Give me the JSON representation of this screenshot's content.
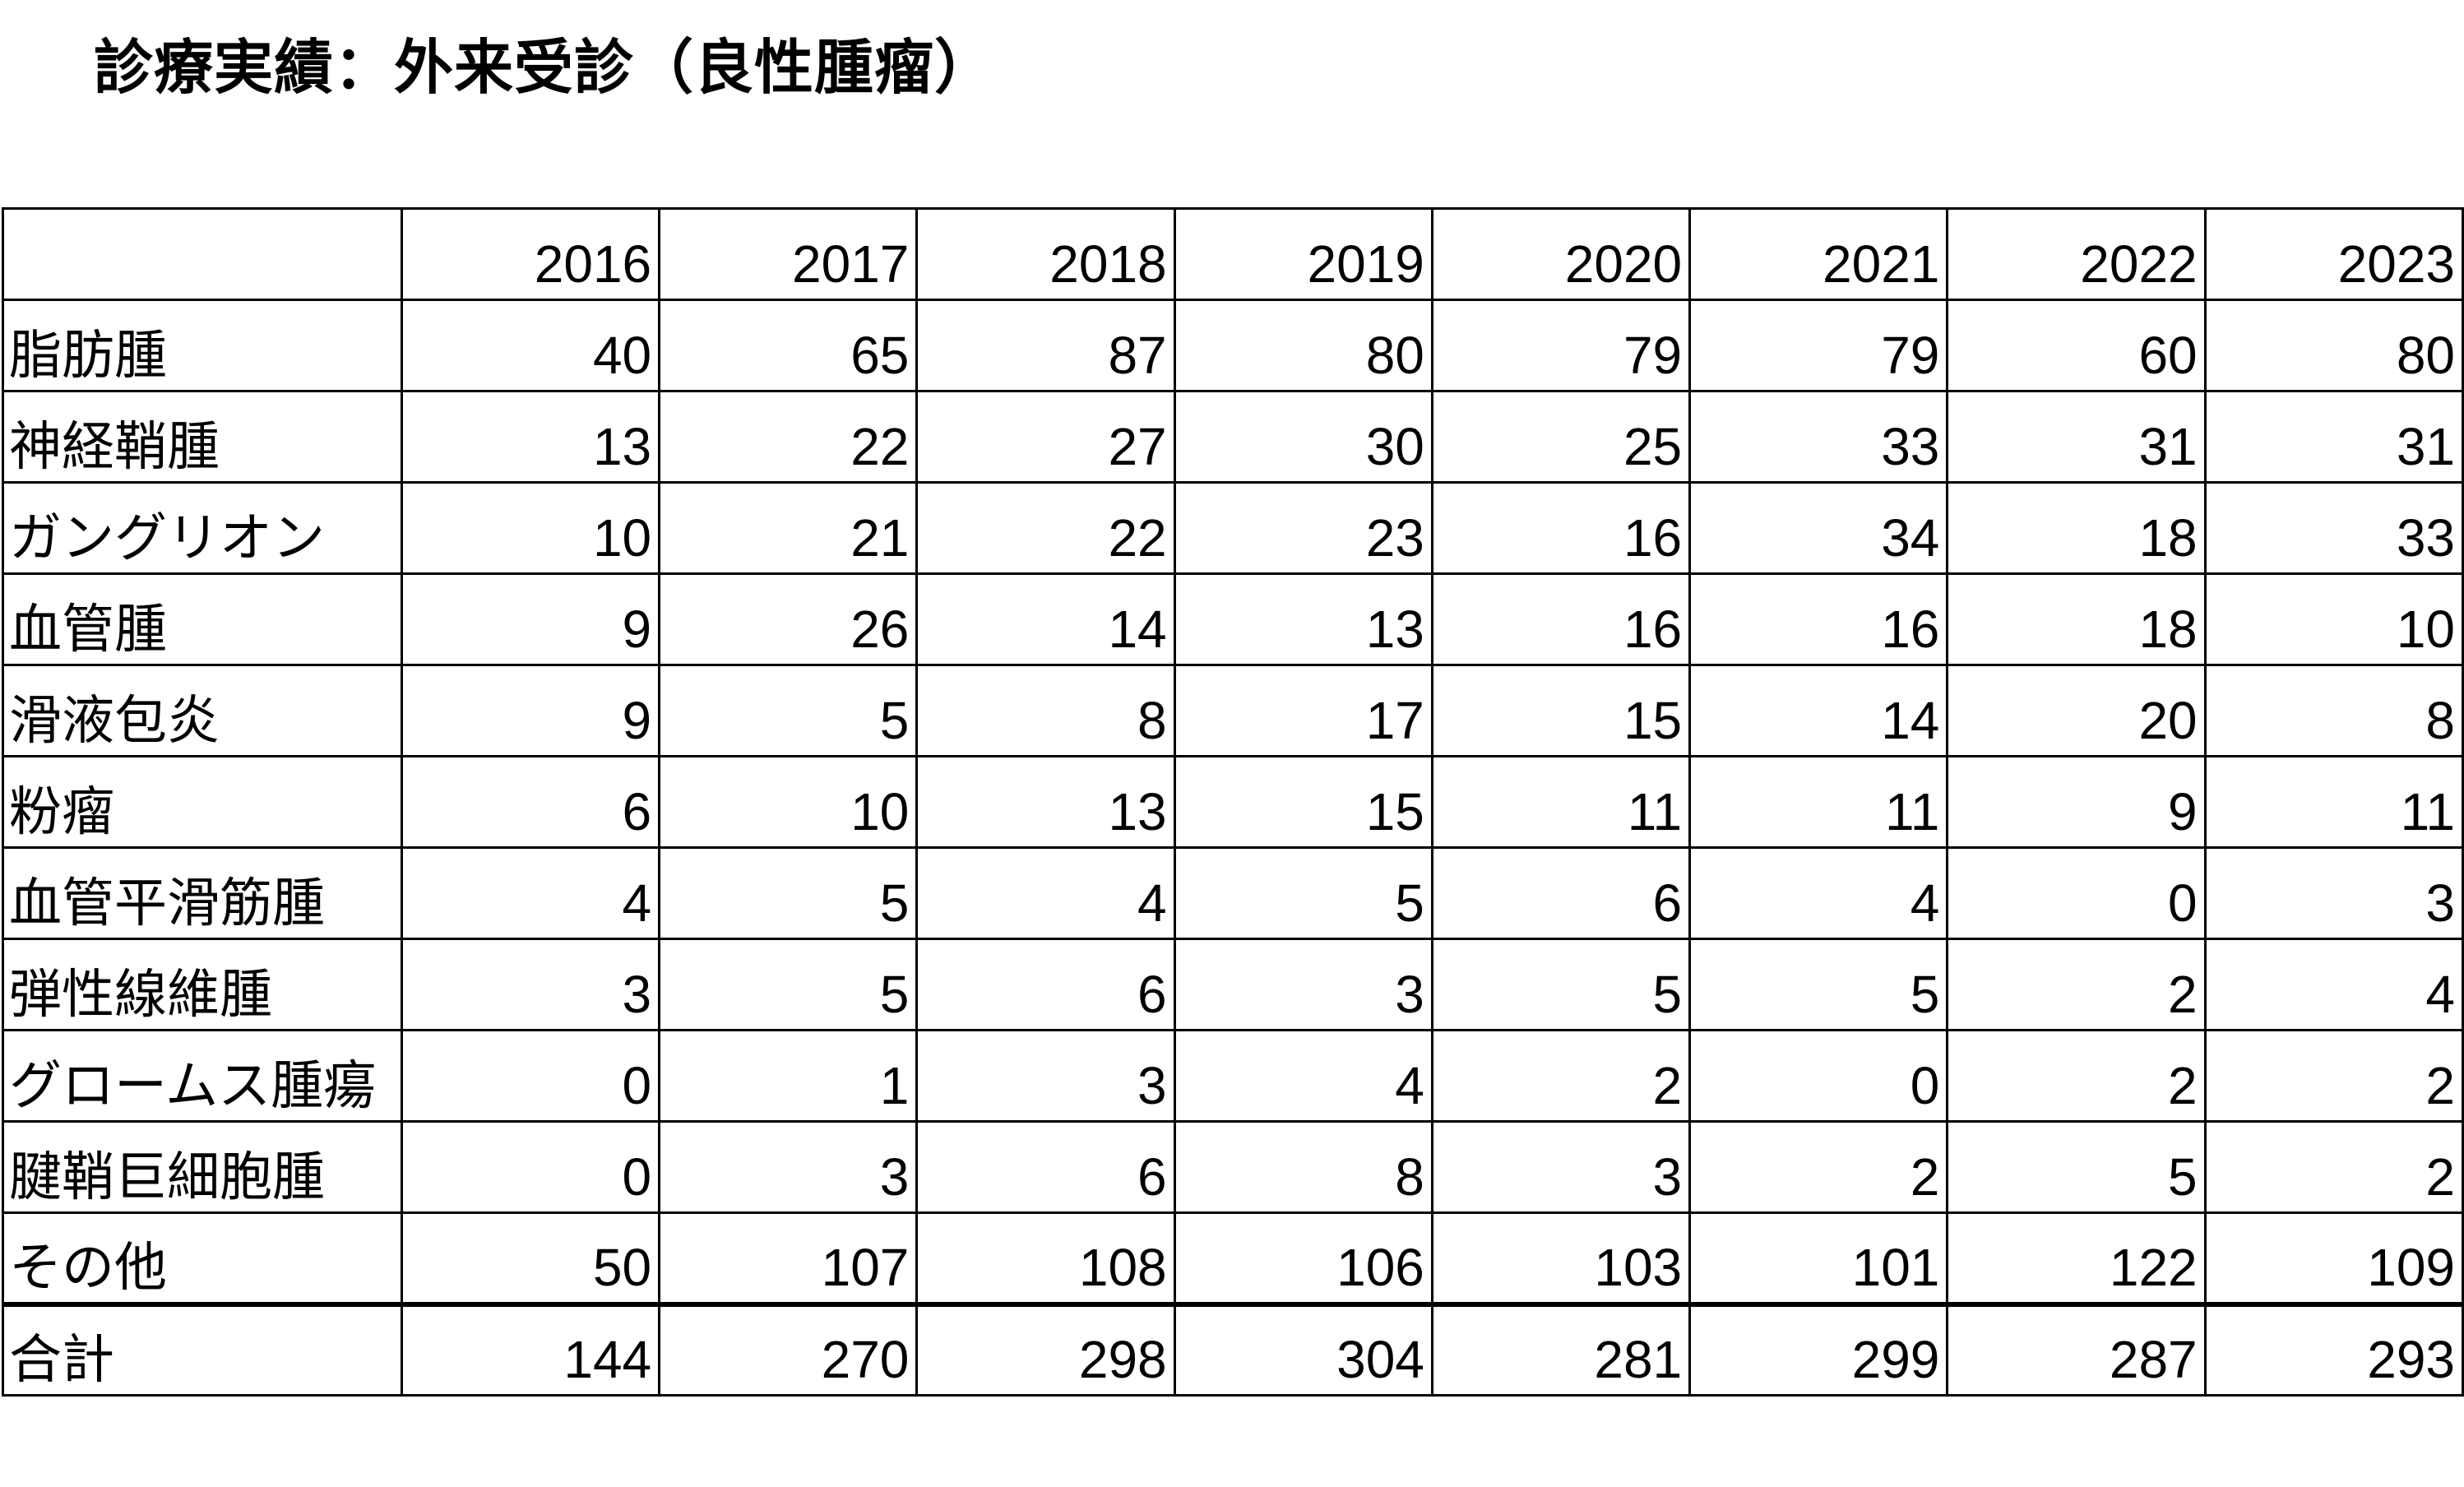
{
  "title": "診療実績：外来受診（良性腫瘤）",
  "table": {
    "header_label": "",
    "years": [
      "2016",
      "2017",
      "2018",
      "2019",
      "2020",
      "2021",
      "2022",
      "2023"
    ],
    "rows": [
      {
        "label": "脂肪腫",
        "values": [
          "40",
          "65",
          "87",
          "80",
          "79",
          "79",
          "60",
          "80"
        ]
      },
      {
        "label": "神経鞘腫",
        "values": [
          "13",
          "22",
          "27",
          "30",
          "25",
          "33",
          "31",
          "31"
        ]
      },
      {
        "label": "ガングリオン",
        "values": [
          "10",
          "21",
          "22",
          "23",
          "16",
          "34",
          "18",
          "33"
        ]
      },
      {
        "label": "血管腫",
        "values": [
          "9",
          "26",
          "14",
          "13",
          "16",
          "16",
          "18",
          "10"
        ]
      },
      {
        "label": "滑液包炎",
        "values": [
          "9",
          "5",
          "8",
          "17",
          "15",
          "14",
          "20",
          "8"
        ]
      },
      {
        "label": "粉瘤",
        "values": [
          "6",
          "10",
          "13",
          "15",
          "11",
          "11",
          "9",
          "11"
        ]
      },
      {
        "label": "血管平滑筋腫",
        "values": [
          "4",
          "5",
          "4",
          "5",
          "6",
          "4",
          "0",
          "3"
        ]
      },
      {
        "label": "弾性線維腫",
        "values": [
          "3",
          "5",
          "6",
          "3",
          "5",
          "5",
          "2",
          "4"
        ]
      },
      {
        "label": "グロームス腫瘍",
        "values": [
          "0",
          "1",
          "3",
          "4",
          "2",
          "0",
          "2",
          "2"
        ]
      },
      {
        "label": "腱鞘巨細胞腫",
        "values": [
          "0",
          "3",
          "6",
          "8",
          "3",
          "2",
          "5",
          "2"
        ]
      },
      {
        "label": "その他",
        "values": [
          "50",
          "107",
          "108",
          "106",
          "103",
          "101",
          "122",
          "109"
        ]
      }
    ],
    "total": {
      "label": "合計",
      "values": [
        "144",
        "270",
        "298",
        "304",
        "281",
        "299",
        "287",
        "293"
      ]
    }
  }
}
